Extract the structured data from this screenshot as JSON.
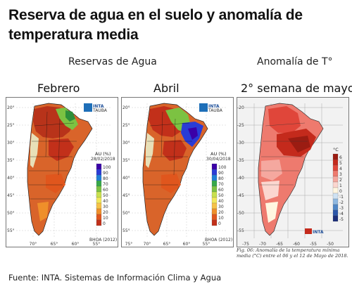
{
  "title": "Reserva de agua en el suelo y anomalía de temperatura media",
  "headers": {
    "water_reserves": "Reservas de Agua",
    "temp_anomaly": "Anomalía de T°"
  },
  "subtitles": {
    "feb": "Febrero",
    "apr": "Abril",
    "may": "2° semana de mayo"
  },
  "map_feb": {
    "legend_title": "AU (%)",
    "date": "28/02/2018",
    "credit": "BHOA (2012)",
    "logo": "INTA",
    "logo2": "TAUBA",
    "legend_values": [
      "100",
      "90",
      "80",
      "70",
      "60",
      "50",
      "40",
      "30",
      "20",
      "10",
      "0"
    ],
    "lat_labels": [
      "20°",
      "25°",
      "30°",
      "35°",
      "40°",
      "45°",
      "50°",
      "55°"
    ],
    "lon_labels": [
      "70°",
      "65°",
      "60°",
      "55°"
    ]
  },
  "map_apr": {
    "legend_title": "AU (%)",
    "date": "30/04/2018",
    "credit": "BHOA (2012)",
    "logo": "INTA",
    "logo2": "TAUBA",
    "legend_values": [
      "100",
      "90",
      "80",
      "70",
      "60",
      "50",
      "40",
      "30",
      "20",
      "10",
      "0"
    ],
    "lat_labels": [
      "20°",
      "25°",
      "30°",
      "35°",
      "40°",
      "45°",
      "50°",
      "55°"
    ],
    "lon_labels": [
      "75°",
      "70°",
      "65°",
      "60°",
      "55°"
    ]
  },
  "map_may": {
    "legend_title": "°C",
    "logo": "INTA",
    "legend_values": [
      "6",
      "5",
      "4",
      "3",
      "2",
      "1",
      "0",
      "-1",
      "-2",
      "-3",
      "-4",
      "-5"
    ],
    "lat_labels": [
      "-20",
      "-25",
      "-30",
      "-35",
      "-40",
      "-45",
      "-50",
      "-55"
    ],
    "lon_labels": [
      "-75",
      "-70",
      "-65",
      "-60",
      "-55",
      "-50"
    ]
  },
  "caption": "Fig. 06: Anomalía de la temperatura mínima media (°C) entre el 06 y el 12 de Mayo de 2018.",
  "source": "Fuente: INTA. Sistemas de Información Clima y Agua",
  "colors": {
    "water_scale": [
      "#3b00a8",
      "#2a3cd6",
      "#1e7fd6",
      "#36a84a",
      "#7cc242",
      "#c8e04e",
      "#f2e85a",
      "#f6c247",
      "#ef8f2a",
      "#e0561d",
      "#c2301a"
    ],
    "temp_scale": [
      "#9b1c12",
      "#c42a1c",
      "#e0463a",
      "#ee7a6e",
      "#f5a89f",
      "#fbd6cf",
      "#fff6e0",
      "#cfe2f3",
      "#8fb8e0",
      "#4f86c6",
      "#2c56a8",
      "#1c2f7a"
    ]
  }
}
